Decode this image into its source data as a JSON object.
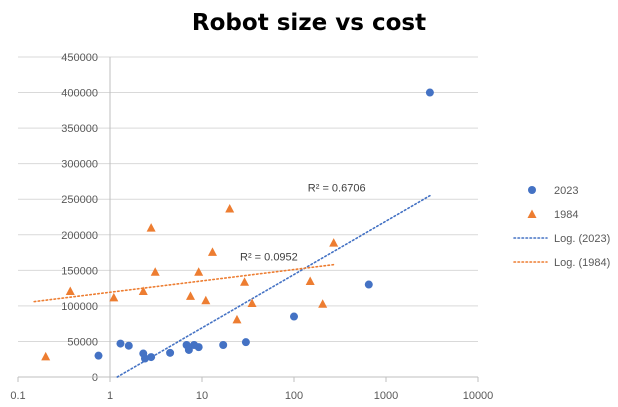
{
  "chart_data": {
    "type": "scatter",
    "title": "Robot size vs cost",
    "xlabel": "",
    "ylabel": "",
    "x_scale": "log",
    "xlim": [
      0.1,
      10000
    ],
    "ylim": [
      0,
      450000
    ],
    "grid": {
      "x": false,
      "y": true
    },
    "legend_position": "right",
    "x_ticks": [
      "0.1",
      "1",
      "10",
      "100",
      "1000",
      "10000"
    ],
    "y_ticks": [
      "0",
      "50000",
      "100000",
      "150000",
      "200000",
      "250000",
      "300000",
      "350000",
      "400000",
      "450000"
    ],
    "series": [
      {
        "name": "2023",
        "marker": "circle",
        "color": "#4472C4",
        "points": [
          [
            0.75,
            30000
          ],
          [
            1.3,
            47000
          ],
          [
            1.6,
            44000
          ],
          [
            2.3,
            33000
          ],
          [
            2.4,
            26000
          ],
          [
            2.8,
            28000
          ],
          [
            4.5,
            34000
          ],
          [
            6.8,
            45000
          ],
          [
            7.2,
            38000
          ],
          [
            8.2,
            45000
          ],
          [
            9.2,
            42000
          ],
          [
            17,
            45000
          ],
          [
            30,
            49000
          ],
          [
            100,
            85000
          ],
          [
            650,
            130000
          ],
          [
            3000,
            400000
          ]
        ]
      },
      {
        "name": "1984",
        "marker": "triangle",
        "color": "#ED7D31",
        "points": [
          [
            0.2,
            29000
          ],
          [
            0.37,
            121000
          ],
          [
            1.1,
            112000
          ],
          [
            2.3,
            121000
          ],
          [
            2.8,
            210000
          ],
          [
            3.1,
            148000
          ],
          [
            7.5,
            114000
          ],
          [
            9.2,
            148000
          ],
          [
            11,
            108000
          ],
          [
            13,
            176000
          ],
          [
            20,
            237000
          ],
          [
            24,
            81000
          ],
          [
            29,
            134000
          ],
          [
            35,
            104000
          ],
          [
            150,
            135000
          ],
          [
            205,
            103000
          ],
          [
            270,
            189000
          ]
        ]
      }
    ],
    "trendlines": [
      {
        "name": "Log. (2023)",
        "type": "log",
        "color": "#4472C4",
        "style": "dotted",
        "x_range": [
          1.2,
          3000
        ],
        "y_range": [
          0,
          255000
        ],
        "r2_label": "R² = 0.6706",
        "r2_pos": [
          600,
          255000
        ]
      },
      {
        "name": "Log. (1984)",
        "type": "log",
        "color": "#ED7D31",
        "style": "dotted",
        "x_range": [
          0.15,
          270
        ],
        "y_range": [
          106000,
          158000
        ],
        "r2_label": "R² = 0.0952",
        "r2_pos": [
          110,
          158000
        ]
      }
    ]
  }
}
